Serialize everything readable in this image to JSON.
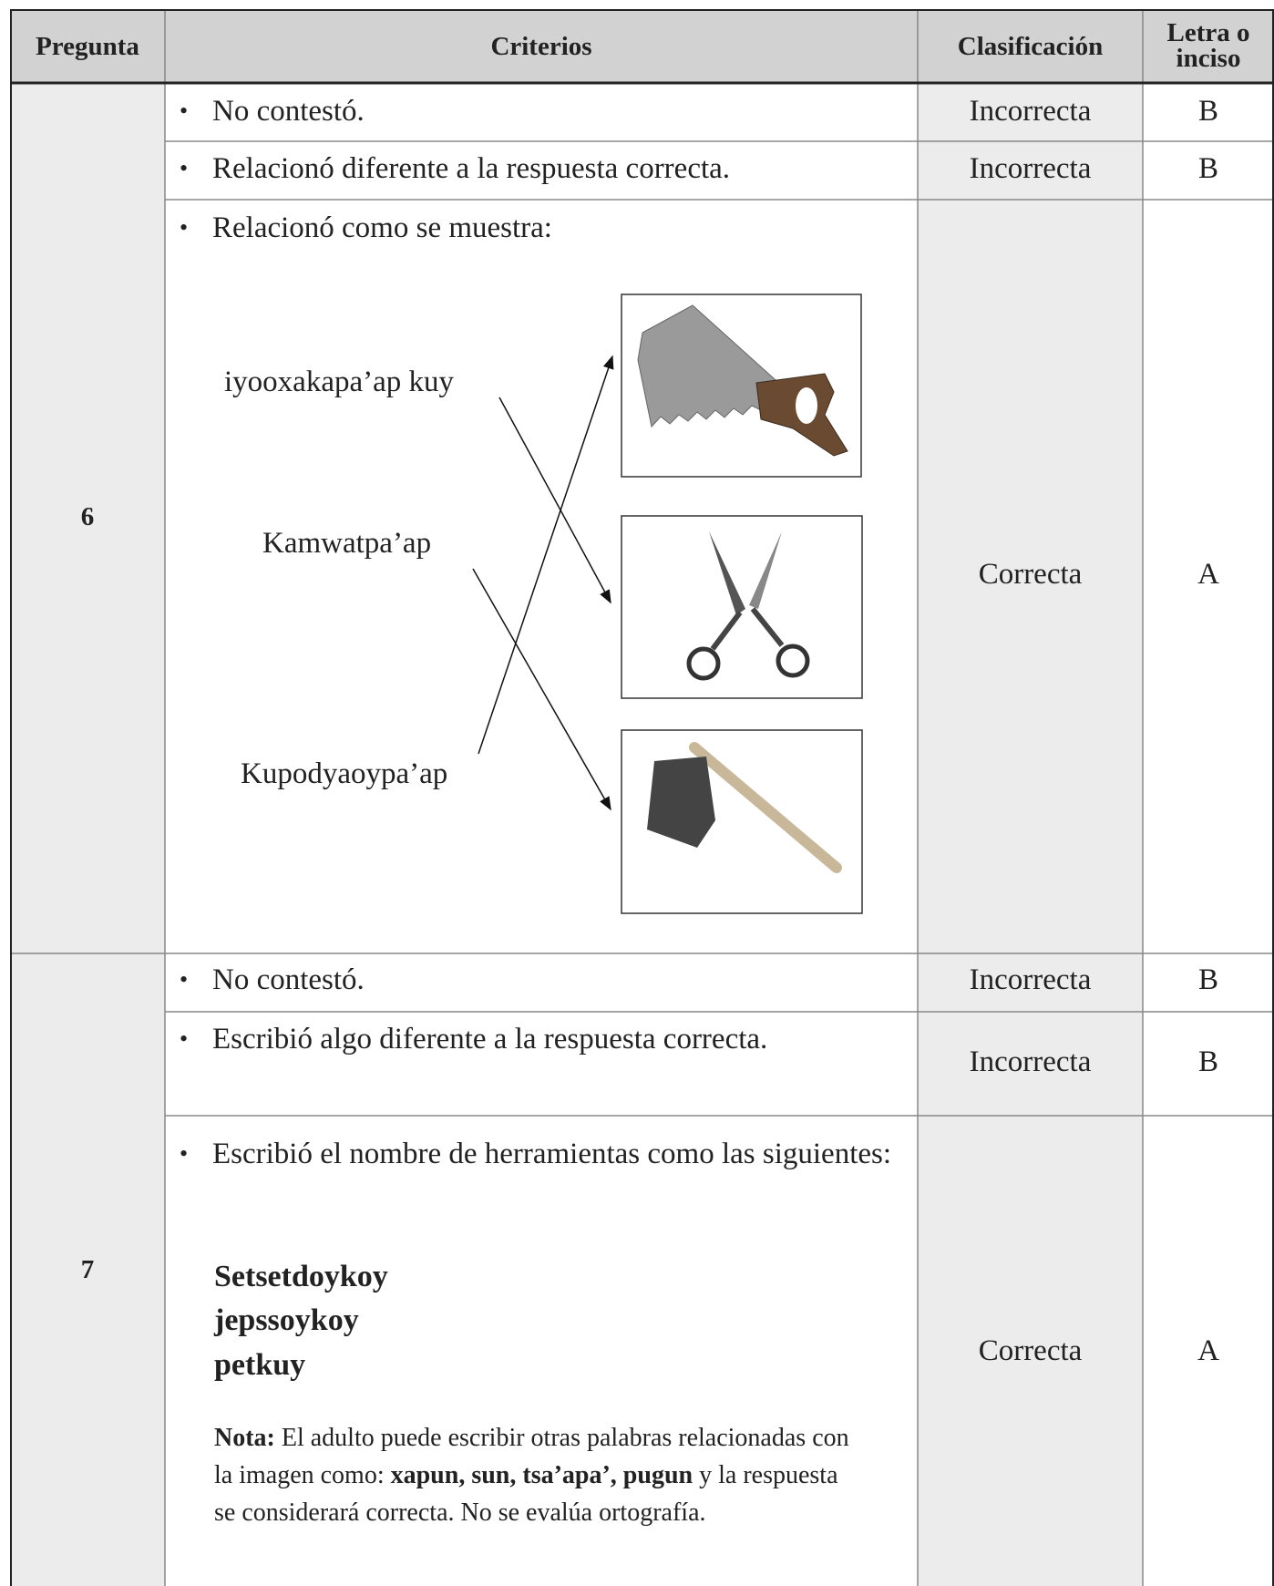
{
  "header": [
    "Pregunta",
    "Criterios",
    "Clasificación",
    "Letra o inciso"
  ],
  "questions": [
    {
      "number": "6",
      "rows": [
        {
          "criterion": "No contestó.",
          "classification": "Incorrecta",
          "letter": "B"
        },
        {
          "criterion": "Relacionó diferente a la respuesta correcta.",
          "classification": "Incorrecta",
          "letter": "B"
        },
        {
          "criterion": "Relacionó como se muestra:",
          "classification": "Correcta",
          "letter": "A",
          "words": [
            "iyooxakapa’ap kuy",
            "Kamwatpa’ap",
            "Kupodyaoypa’ap"
          ]
        }
      ]
    },
    {
      "number": "7",
      "rows": [
        {
          "criterion": "No contestó.",
          "classification": "Incorrecta",
          "letter": "B"
        },
        {
          "criterion": "Escribió algo diferente a la respuesta correcta.",
          "classification": "Incorrecta",
          "letter": "B"
        },
        {
          "criterion": "Escribió el nombre de herramientas como las siguientes:",
          "classification": "Correcta",
          "letter": "A",
          "answers": [
            "Setsetdoykoy",
            "jepssoykoy",
            "petkuy"
          ],
          "note": {
            "label": "Nota:",
            "text_before": " El adulto puede escribir otras palabras relacionadas con la imagen como: ",
            "examples": "xapun, sun, tsa’apa’, pugun",
            "text_after": " y la respuesta se considerará correcta. No se evalúa ortografía."
          }
        }
      ]
    }
  ]
}
